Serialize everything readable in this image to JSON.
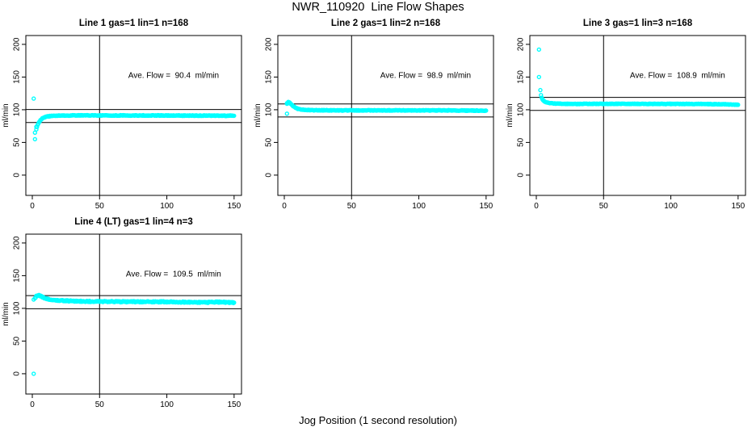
{
  "figure": {
    "title": "NWR_110920  Line Flow Shapes",
    "xlabel": "Jog Position (1 second resolution)",
    "point_color": "#00FFFF",
    "axis_color": "#000000",
    "background_color": "#FFFFFF"
  },
  "chart_data": [
    {
      "type": "scatter",
      "title": "Line 1 gas=1 lin=1 n=168",
      "ylabel": "ml/min",
      "annotation": "Ave. Flow =  90.4  ml/min",
      "annotation_xy": [
        105,
        153
      ],
      "ave_flow_ml_min": 90.4,
      "n": 168,
      "xlim": [
        -4.8,
        155.5
      ],
      "ylim": [
        -31,
        213.5
      ],
      "xticks": [
        0,
        50,
        100,
        150
      ],
      "yticks": [
        0,
        50,
        100,
        150,
        200
      ],
      "vline_x": 50,
      "hlines": [
        100.4,
        80.4
      ],
      "outlier_points": [
        [
          1,
          117
        ],
        [
          2,
          55
        ],
        [
          2,
          65
        ],
        [
          3,
          70
        ],
        [
          3,
          74
        ]
      ],
      "curve_anchors": [
        [
          3.5,
          74
        ],
        [
          4,
          77
        ],
        [
          5,
          81
        ],
        [
          6,
          84
        ],
        [
          7,
          86
        ],
        [
          8,
          87.5
        ],
        [
          9,
          88.5
        ],
        [
          10,
          89
        ],
        [
          12,
          90
        ],
        [
          15,
          90.5
        ],
        [
          20,
          91
        ],
        [
          30,
          91.3
        ],
        [
          60,
          91.3
        ],
        [
          100,
          91.2
        ],
        [
          150,
          90.8
        ]
      ],
      "curve_step": 0.5,
      "jitter": 0.5
    },
    {
      "type": "scatter",
      "title": "Line 2 gas=1 lin=2 n=168",
      "ylabel": "ml/min",
      "annotation": "Ave. Flow =  98.9  ml/min",
      "annotation_xy": [
        105,
        153
      ],
      "ave_flow_ml_min": 98.9,
      "n": 168,
      "xlim": [
        -4.8,
        155.5
      ],
      "ylim": [
        -31,
        213.5
      ],
      "xticks": [
        0,
        50,
        100,
        150
      ],
      "yticks": [
        0,
        50,
        100,
        150,
        200
      ],
      "vline_x": 50,
      "hlines": [
        108.9,
        88.9
      ],
      "outlier_points": [
        [
          2,
          94
        ],
        [
          2,
          109
        ],
        [
          3,
          112
        ],
        [
          3,
          110
        ],
        [
          4,
          111
        ]
      ],
      "curve_anchors": [
        [
          2,
          110
        ],
        [
          3,
          111
        ],
        [
          4,
          110.5
        ],
        [
          5,
          108.5
        ],
        [
          6,
          106.5
        ],
        [
          7,
          105
        ],
        [
          8,
          103.5
        ],
        [
          9,
          102.5
        ],
        [
          10,
          101.5
        ],
        [
          12,
          100.5
        ],
        [
          15,
          99.8
        ],
        [
          20,
          99.3
        ],
        [
          40,
          99
        ],
        [
          80,
          99
        ],
        [
          120,
          99
        ],
        [
          150,
          98.6
        ]
      ],
      "curve_step": 0.5,
      "jitter": 0.5
    },
    {
      "type": "scatter",
      "title": "Line 3 gas=1 lin=3 n=168",
      "ylabel": "ml/min",
      "annotation": "Ave. Flow =  108.9  ml/min",
      "annotation_xy": [
        105,
        153
      ],
      "ave_flow_ml_min": 108.9,
      "n": 168,
      "xlim": [
        -4.8,
        155.5
      ],
      "ylim": [
        -31,
        213.5
      ],
      "xticks": [
        0,
        50,
        100,
        150
      ],
      "yticks": [
        0,
        50,
        100,
        150,
        200
      ],
      "vline_x": 50,
      "hlines": [
        118.9,
        98.9
      ],
      "outlier_points": [
        [
          2,
          192
        ],
        [
          2,
          150
        ],
        [
          3,
          130
        ]
      ],
      "curve_anchors": [
        [
          3.5,
          122
        ],
        [
          4,
          118
        ],
        [
          5,
          114.5
        ],
        [
          6,
          112.5
        ],
        [
          7,
          111.5
        ],
        [
          8,
          111
        ],
        [
          10,
          110
        ],
        [
          15,
          109.3
        ],
        [
          20,
          109
        ],
        [
          40,
          109
        ],
        [
          80,
          109
        ],
        [
          120,
          108.8
        ],
        [
          140,
          108.4
        ],
        [
          146,
          108
        ],
        [
          150,
          107.6
        ]
      ],
      "curve_step": 0.5,
      "jitter": 0.45
    },
    {
      "type": "scatter",
      "title": "Line 4 (LT) gas=1 lin=4 n=3",
      "ylabel": "ml/min",
      "annotation": "Ave. Flow =  109.5  ml/min",
      "annotation_xy": [
        105,
        153
      ],
      "ave_flow_ml_min": 109.5,
      "n": 3,
      "xlim": [
        -4.8,
        155.5
      ],
      "ylim": [
        -31,
        213.5
      ],
      "xticks": [
        0,
        50,
        100,
        150
      ],
      "yticks": [
        0,
        50,
        100,
        150,
        200
      ],
      "vline_x": 50,
      "hlines": [
        119.5,
        99.5
      ],
      "outlier_points": [
        [
          1,
          0
        ],
        [
          1,
          113.5
        ]
      ],
      "curve_anchors": [
        [
          2,
          116
        ],
        [
          3,
          118.5
        ],
        [
          4,
          119.5
        ],
        [
          5,
          119.8
        ],
        [
          6,
          119
        ],
        [
          7,
          118
        ],
        [
          8,
          117
        ],
        [
          9,
          116
        ],
        [
          10,
          115.3
        ],
        [
          12,
          114.3
        ],
        [
          15,
          113.2
        ],
        [
          20,
          112.2
        ],
        [
          25,
          111.6
        ],
        [
          30,
          111.2
        ],
        [
          40,
          110.7
        ],
        [
          50,
          110.4
        ],
        [
          60,
          110.4
        ],
        [
          70,
          110.1
        ],
        [
          80,
          110.2
        ],
        [
          90,
          110
        ],
        [
          100,
          110
        ],
        [
          110,
          109.7
        ],
        [
          120,
          109.4
        ],
        [
          130,
          109.2
        ],
        [
          140,
          109.6
        ],
        [
          150,
          108.8
        ]
      ],
      "curve_step": 0.5,
      "jitter": 0.9
    }
  ]
}
